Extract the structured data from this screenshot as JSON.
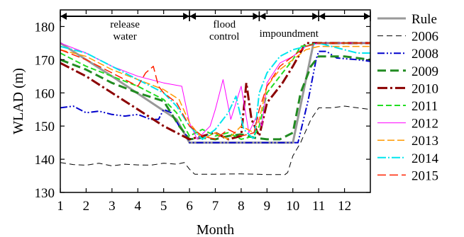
{
  "chart_data": {
    "type": "line",
    "xlabel": "Month",
    "ylabel": "WLAD (m)",
    "xlim": [
      1,
      13
    ],
    "ylim": [
      130,
      185
    ],
    "x_ticks": [
      "1",
      "2",
      "3",
      "4",
      "5",
      "6",
      "7",
      "8",
      "9",
      "10",
      "11",
      "12"
    ],
    "y_ticks": [
      "130",
      "140",
      "150",
      "160",
      "170",
      "180"
    ],
    "grid": false,
    "legend_position": "right-outside",
    "phases": [
      {
        "label_lines": [
          "release",
          "water"
        ],
        "x_start": 1,
        "x_end": 6
      },
      {
        "label_lines": [
          "flood",
          "control"
        ],
        "x_start": 6,
        "x_end": 8.7
      },
      {
        "label_lines": [
          "impoundment"
        ],
        "x_start": 8.7,
        "x_end": 11
      },
      {
        "label_lines": [
          ""
        ],
        "x_start": 11,
        "x_end": 13
      }
    ],
    "series": [
      {
        "name": "Rule",
        "color": "#999999",
        "dash": "solid",
        "width": 3,
        "points": [
          [
            1,
            175
          ],
          [
            3,
            165
          ],
          [
            5.5,
            152
          ],
          [
            6,
            145
          ],
          [
            10,
            145
          ],
          [
            10.8,
            175
          ],
          [
            13,
            175
          ]
        ]
      },
      {
        "name": "2006",
        "color": "#000000",
        "dash": "8,5",
        "width": 1,
        "points": [
          [
            1,
            139
          ],
          [
            1.5,
            138.4
          ],
          [
            2,
            138.2
          ],
          [
            2.5,
            138.8
          ],
          [
            3,
            138
          ],
          [
            3.5,
            138.5
          ],
          [
            4,
            138.3
          ],
          [
            4.5,
            138.2
          ],
          [
            5,
            138.8
          ],
          [
            5.5,
            138.5
          ],
          [
            5.8,
            139
          ],
          [
            6,
            137
          ],
          [
            6.2,
            135.5
          ],
          [
            7,
            135.5
          ],
          [
            8,
            135.6
          ],
          [
            9,
            135.4
          ],
          [
            9.7,
            135.4
          ],
          [
            9.8,
            136
          ],
          [
            10,
            141
          ],
          [
            10.3,
            145
          ],
          [
            10.7,
            152
          ],
          [
            11,
            155.5
          ],
          [
            11.5,
            155.5
          ],
          [
            12,
            156
          ],
          [
            12.5,
            155.5
          ],
          [
            13,
            155
          ]
        ]
      },
      {
        "name": "2008",
        "color": "#0000cc",
        "dash": "10,3,2,3,2,3",
        "width": 2,
        "points": [
          [
            1,
            155.5
          ],
          [
            1.5,
            156
          ],
          [
            2,
            154
          ],
          [
            2.5,
            154.5
          ],
          [
            3,
            153.5
          ],
          [
            3.5,
            153
          ],
          [
            4,
            153.5
          ],
          [
            4.5,
            152
          ],
          [
            4.8,
            152
          ],
          [
            5,
            155
          ],
          [
            5.3,
            154
          ],
          [
            5.6,
            150
          ],
          [
            5.9,
            147
          ],
          [
            6,
            145
          ],
          [
            10,
            145
          ],
          [
            10.2,
            145
          ],
          [
            10.6,
            158
          ],
          [
            10.9,
            170
          ],
          [
            11,
            172.5
          ],
          [
            11.3,
            172.5
          ],
          [
            11.7,
            170.5
          ],
          [
            12.5,
            170
          ],
          [
            13,
            169.5
          ]
        ]
      },
      {
        "name": "2009",
        "color": "#228b22",
        "dash": "12,6",
        "width": 3,
        "points": [
          [
            1,
            170
          ],
          [
            2,
            167
          ],
          [
            3,
            163
          ],
          [
            4,
            160
          ],
          [
            5,
            157.5
          ],
          [
            5.6,
            150
          ],
          [
            6,
            146
          ],
          [
            6.5,
            146.5
          ],
          [
            7,
            146
          ],
          [
            7.5,
            147
          ],
          [
            8,
            147.5
          ],
          [
            8.5,
            146.5
          ],
          [
            9,
            146
          ],
          [
            9.5,
            146
          ],
          [
            10,
            148
          ],
          [
            10.3,
            160
          ],
          [
            10.7,
            168
          ],
          [
            11,
            171
          ],
          [
            12,
            171
          ],
          [
            13,
            170
          ]
        ]
      },
      {
        "name": "2010",
        "color": "#8b0000",
        "dash": "14,4,3,4",
        "width": 3,
        "points": [
          [
            1,
            169
          ],
          [
            2,
            165
          ],
          [
            3,
            160
          ],
          [
            4,
            155
          ],
          [
            5,
            150
          ],
          [
            5.5,
            148
          ],
          [
            6,
            146
          ],
          [
            6.5,
            147
          ],
          [
            7,
            148
          ],
          [
            7.5,
            146
          ],
          [
            8,
            147
          ],
          [
            8.2,
            163
          ],
          [
            8.4,
            152
          ],
          [
            8.7,
            147
          ],
          [
            9,
            157
          ],
          [
            9.3,
            160
          ],
          [
            9.6,
            163
          ],
          [
            10,
            168
          ],
          [
            10.5,
            175
          ],
          [
            13,
            175
          ]
        ]
      },
      {
        "name": "2011",
        "color": "#22dd22",
        "dash": "8,4",
        "width": 2,
        "points": [
          [
            1,
            172
          ],
          [
            2,
            168
          ],
          [
            3,
            165
          ],
          [
            4,
            162
          ],
          [
            5,
            158
          ],
          [
            5.5,
            154
          ],
          [
            6,
            147
          ],
          [
            6.5,
            149
          ],
          [
            7,
            147
          ],
          [
            7.5,
            148
          ],
          [
            8,
            146
          ],
          [
            8.5,
            147
          ],
          [
            8.7,
            150
          ],
          [
            9,
            160
          ],
          [
            9.5,
            165
          ],
          [
            10,
            170
          ],
          [
            10.3,
            174
          ],
          [
            11,
            175
          ],
          [
            13,
            175
          ]
        ]
      },
      {
        "name": "2012",
        "color": "#ff00ff",
        "dash": "solid",
        "width": 1,
        "points": [
          [
            1,
            175
          ],
          [
            2,
            172
          ],
          [
            3,
            168
          ],
          [
            4,
            165
          ],
          [
            5,
            163
          ],
          [
            5.7,
            162
          ],
          [
            6,
            151
          ],
          [
            6.3,
            146
          ],
          [
            6.8,
            150
          ],
          [
            7,
            155
          ],
          [
            7.3,
            164
          ],
          [
            7.6,
            152
          ],
          [
            8,
            162
          ],
          [
            8.3,
            148
          ],
          [
            8.6,
            153
          ],
          [
            8.8,
            150
          ],
          [
            9,
            163
          ],
          [
            9.5,
            169
          ],
          [
            10,
            171
          ],
          [
            10.5,
            174
          ],
          [
            11,
            175
          ],
          [
            12,
            175
          ],
          [
            13,
            175
          ]
        ]
      },
      {
        "name": "2013",
        "color": "#ff9900",
        "dash": "10,4",
        "width": 1.5,
        "points": [
          [
            1,
            173
          ],
          [
            2,
            171
          ],
          [
            3,
            167
          ],
          [
            4,
            164
          ],
          [
            5,
            161
          ],
          [
            5.6,
            158
          ],
          [
            6,
            151
          ],
          [
            6.5,
            146
          ],
          [
            7,
            148
          ],
          [
            7.5,
            146
          ],
          [
            8,
            150
          ],
          [
            8.5,
            148
          ],
          [
            8.7,
            152
          ],
          [
            9,
            162
          ],
          [
            9.5,
            167
          ],
          [
            10,
            170
          ],
          [
            10.5,
            173
          ],
          [
            11,
            174
          ],
          [
            13,
            174
          ]
        ]
      },
      {
        "name": "2014",
        "color": "#00e5ee",
        "dash": "12,3,2,3",
        "width": 2,
        "points": [
          [
            1,
            174
          ],
          [
            2,
            172
          ],
          [
            3,
            168
          ],
          [
            4,
            164
          ],
          [
            5,
            160
          ],
          [
            5.5,
            156
          ],
          [
            6,
            150
          ],
          [
            6.5,
            146
          ],
          [
            7,
            149
          ],
          [
            7.5,
            154
          ],
          [
            7.8,
            159
          ],
          [
            8.1,
            149
          ],
          [
            8.5,
            146
          ],
          [
            8.7,
            160
          ],
          [
            9,
            166
          ],
          [
            9.5,
            171
          ],
          [
            10,
            173
          ],
          [
            10.5,
            174
          ],
          [
            11,
            175
          ],
          [
            11.5,
            174
          ],
          [
            12,
            173
          ],
          [
            12.5,
            172
          ],
          [
            13,
            172
          ]
        ]
      },
      {
        "name": "2015",
        "color": "#ff2200",
        "dash": "12,5",
        "width": 1.5,
        "points": [
          [
            1,
            173
          ],
          [
            2,
            170
          ],
          [
            3,
            166
          ],
          [
            3.5,
            164
          ],
          [
            4,
            162
          ],
          [
            4.3,
            166
          ],
          [
            4.6,
            168
          ],
          [
            4.8,
            162
          ],
          [
            5,
            160
          ],
          [
            5.5,
            157
          ],
          [
            6,
            150
          ],
          [
            6.5,
            147
          ],
          [
            7,
            146
          ],
          [
            7.5,
            149
          ],
          [
            8,
            147
          ],
          [
            8.5,
            148
          ],
          [
            8.7,
            155
          ],
          [
            9,
            162
          ],
          [
            9.5,
            168
          ],
          [
            10,
            171
          ],
          [
            10.5,
            174
          ],
          [
            11,
            175
          ],
          [
            13,
            175
          ]
        ]
      }
    ]
  }
}
